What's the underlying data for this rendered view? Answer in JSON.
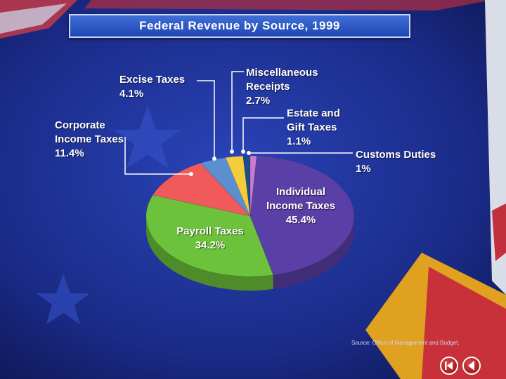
{
  "title": "Federal Revenue by Source, 1999",
  "source": "Source: Office of Management and Budget.",
  "colors": {
    "individual": "#5a3fa6",
    "payroll": "#6cc23a",
    "corporate": "#f05a5a",
    "excise": "#5b8fd0",
    "misc": "#f2cc3a",
    "estate": "#1a4d8a",
    "customs": "#cc7ad0"
  },
  "chart_data": {
    "type": "pie",
    "title": "Federal Revenue by Source, 1999",
    "slices": [
      {
        "key": "individual",
        "name": "Individual Income Taxes",
        "value": 45.4,
        "label": "45.4%"
      },
      {
        "key": "payroll",
        "name": "Payroll Taxes",
        "value": 34.2,
        "label": "34.2%"
      },
      {
        "key": "corporate",
        "name": "Corporate Income Taxes",
        "value": 11.4,
        "label": "11.4%"
      },
      {
        "key": "excise",
        "name": "Excise Taxes",
        "value": 4.1,
        "label": "4.1%"
      },
      {
        "key": "misc",
        "name": "Miscellaneous Receipts",
        "value": 2.7,
        "label": "2.7%"
      },
      {
        "key": "estate",
        "name": "Estate and Gift Taxes",
        "value": 1.1,
        "label": "1.1%"
      },
      {
        "key": "customs",
        "name": "Customs Duties",
        "value": 1,
        "label": "1%"
      }
    ]
  },
  "labels": {
    "excise": {
      "line1": "Excise Taxes",
      "line2": "",
      "pct": "4.1%"
    },
    "misc": {
      "line1": "Miscellaneous",
      "line2": "Receipts",
      "pct": "2.7%"
    },
    "estate": {
      "line1": "Estate and",
      "line2": "Gift Taxes",
      "pct": "1.1%"
    },
    "corporate": {
      "line1": "Corporate",
      "line2": "Income Taxes",
      "pct": "11.4%"
    },
    "customs": {
      "line1": "Customs Duties",
      "line2": "",
      "pct": "1%"
    },
    "individual": {
      "line1": "Individual",
      "line2": "Income Taxes",
      "pct": "45.4%"
    },
    "payroll": {
      "line1": "Payroll Taxes",
      "line2": "",
      "pct": "34.2%"
    }
  },
  "nav": {
    "first": "first-slide-icon",
    "prev": "previous-slide-icon"
  }
}
